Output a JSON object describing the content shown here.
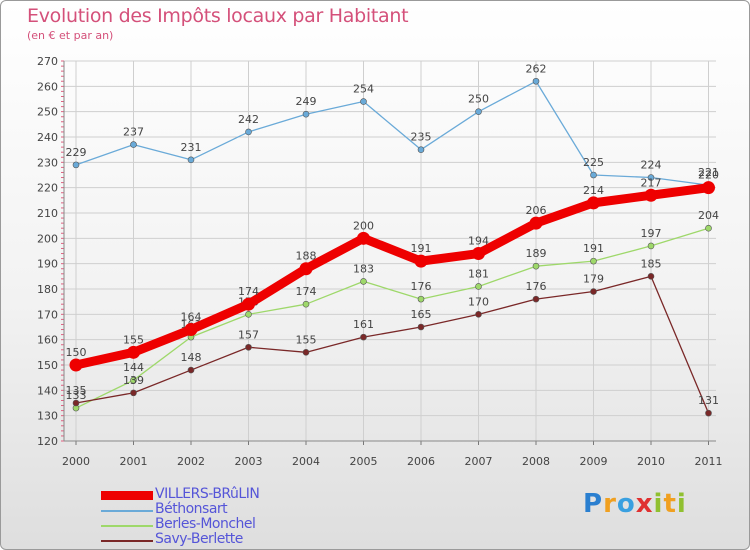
{
  "title": "Evolution des Impôts locaux par Habitant",
  "subtitle": "(en € et par an)",
  "logo_text": "Proxiti",
  "chart_data": {
    "type": "line",
    "x": [
      "2000",
      "2001",
      "2002",
      "2003",
      "2004",
      "2005",
      "2006",
      "2007",
      "2008",
      "2009",
      "2010",
      "2011"
    ],
    "ylim": [
      120,
      270
    ],
    "y_ticks": [
      120,
      130,
      140,
      150,
      160,
      170,
      180,
      190,
      200,
      210,
      220,
      230,
      240,
      250,
      260,
      270
    ],
    "grid": true,
    "legend_position": "bottom-left",
    "series": [
      {
        "name": "VILLERS-BRûLIN",
        "color": "#ee0000",
        "values": [
          150,
          155,
          164,
          174,
          188,
          200,
          191,
          194,
          206,
          214,
          217,
          220
        ]
      },
      {
        "name": "Béthonsart",
        "color": "#6aaad8",
        "values": [
          229,
          237,
          231,
          242,
          249,
          254,
          235,
          250,
          262,
          225,
          224,
          221
        ]
      },
      {
        "name": "Berles-Monchel",
        "color": "#9ed86a",
        "values": [
          133,
          144,
          161,
          170,
          174,
          183,
          176,
          181,
          189,
          191,
          197,
          204
        ]
      },
      {
        "name": "Savy-Berlette",
        "color": "#7a2828",
        "values": [
          135,
          139,
          148,
          157,
          155,
          161,
          165,
          170,
          176,
          179,
          185,
          131
        ]
      }
    ]
  }
}
